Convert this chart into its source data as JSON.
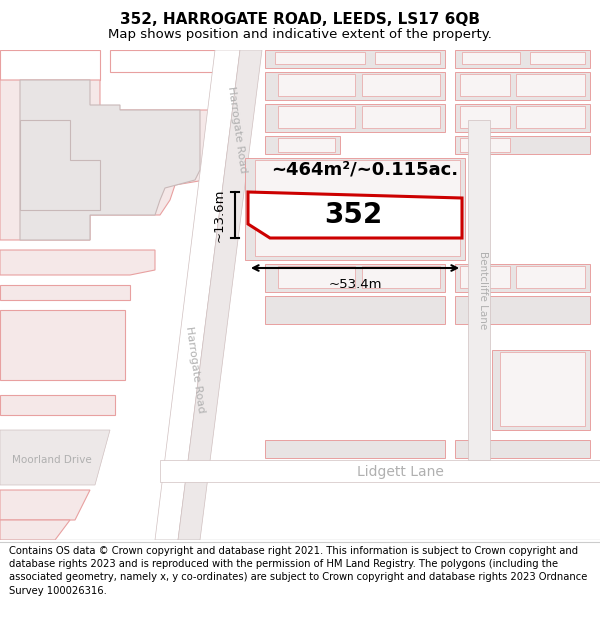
{
  "title": "352, HARROGATE ROAD, LEEDS, LS17 6QB",
  "subtitle": "Map shows position and indicative extent of the property.",
  "footer": "Contains OS data © Crown copyright and database right 2021. This information is subject to Crown copyright and database rights 2023 and is reproduced with the permission of HM Land Registry. The polygons (including the associated geometry, namely x, y co-ordinates) are subject to Crown copyright and database rights 2023 Ordnance Survey 100026316.",
  "area_text": "~464m²/~0.115ac.",
  "plot_label": "352",
  "dim_width": "~53.4m",
  "dim_height": "~13.6m",
  "title_fontsize": 11,
  "subtitle_fontsize": 9.5,
  "footer_fontsize": 7.2,
  "map_bg": "#f5f0f0",
  "road_fill": "#ffffff",
  "building_fill": "#f5e8e8",
  "building_edge": "#e8a0a0",
  "grey_fill": "#e8e4e4",
  "grey_edge": "#c8b8b8",
  "plot_fill": "#ffffff",
  "plot_edge": "#cc0000",
  "road_label": "#b0b0b0",
  "dim_color": "#000000"
}
